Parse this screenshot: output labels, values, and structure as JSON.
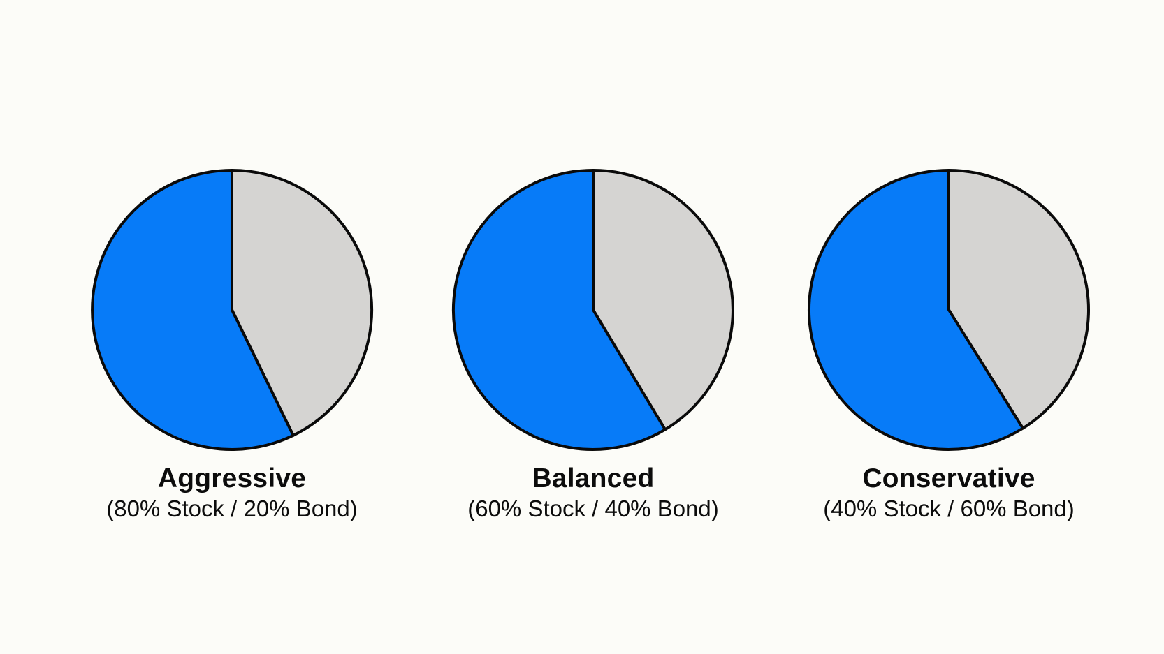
{
  "page": {
    "background": "#FCFCF8",
    "description": "Three pie charts comparing portfolio allocations"
  },
  "colors": {
    "stock_blue": "#077BF8",
    "bond_gray": "#D5D4D2",
    "outline": "#0A0A0A",
    "text": "#0C0C0C"
  },
  "chart_data": [
    {
      "type": "pie",
      "title": "Aggressive",
      "subtitle": "(80% Stock / 20% Bond)",
      "slices": [
        {
          "label": "Stock",
          "value": 80,
          "color": "#077BF8"
        },
        {
          "label": "Bond",
          "value": 20,
          "color": "#D5D4D2"
        }
      ],
      "legend": "none",
      "rendered_split_deg": 154
    },
    {
      "type": "pie",
      "title": "Balanced",
      "subtitle": "(60% Stock / 40% Bond)",
      "slices": [
        {
          "label": "Stock",
          "value": 60,
          "color": "#077BF8"
        },
        {
          "label": "Bond",
          "value": 40,
          "color": "#D5D4D2"
        }
      ],
      "legend": "none",
      "rendered_split_deg": 149
    },
    {
      "type": "pie",
      "title": "Conservative",
      "subtitle": "(40% Stock / 60% Bond)",
      "slices": [
        {
          "label": "Stock",
          "value": 40,
          "color": "#077BF8"
        },
        {
          "label": "Bond",
          "value": 60,
          "color": "#D5D4D2"
        }
      ],
      "legend": "none",
      "rendered_split_deg": 148
    }
  ]
}
